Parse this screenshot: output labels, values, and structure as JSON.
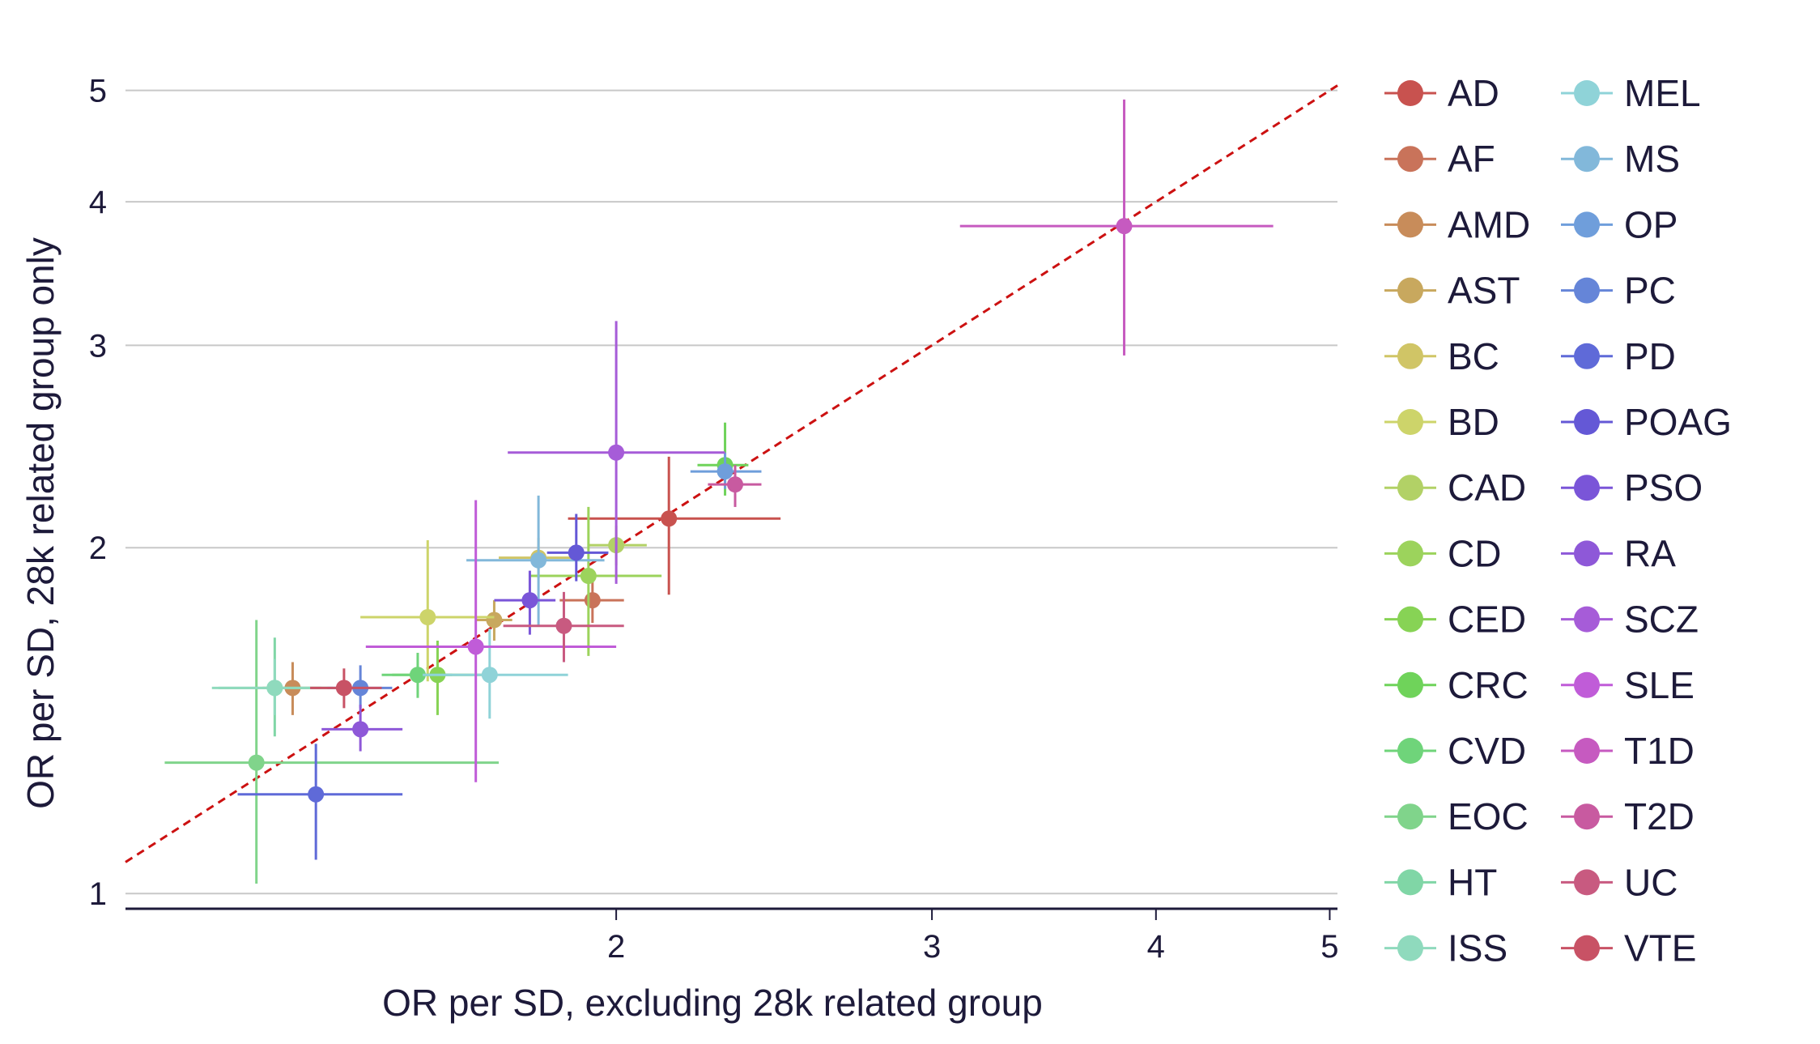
{
  "chart_data": {
    "type": "scatter",
    "xlabel": "OR per SD, excluding 28k related group",
    "ylabel": "OR per SD, 28k related group only",
    "x_scale": "log",
    "y_scale": "log",
    "xlim": [
      1.065,
      5.05
    ],
    "ylim": [
      0.97,
      5.35
    ],
    "x_ticks": [
      2,
      3,
      4,
      5
    ],
    "y_ticks": [
      1,
      2,
      3,
      4,
      5
    ],
    "grid": "horizontal",
    "reference_line": "y = x",
    "reference_line_color": "#cc1111",
    "legend_position": "right",
    "series": [
      {
        "name": "AD",
        "color": "#c8524f",
        "x": 2.14,
        "x_lo": 1.88,
        "x_hi": 2.47,
        "y": 2.12,
        "y_lo": 1.82,
        "y_hi": 2.4
      },
      {
        "name": "AF",
        "color": "#c9735a",
        "x": 1.94,
        "x_lo": 1.86,
        "x_hi": 2.02,
        "y": 1.8,
        "y_lo": 1.72,
        "y_hi": 1.88
      },
      {
        "name": "AMD",
        "color": "#c88c5a",
        "x": 1.32,
        "x_lo": 1.27,
        "x_hi": 1.37,
        "y": 1.51,
        "y_lo": 1.43,
        "y_hi": 1.59
      },
      {
        "name": "AST",
        "color": "#c8a85e",
        "x": 1.71,
        "x_lo": 1.67,
        "x_hi": 1.75,
        "y": 1.73,
        "y_lo": 1.66,
        "y_hi": 1.8
      },
      {
        "name": "BC",
        "color": "#d0c566",
        "x": 1.81,
        "x_lo": 1.72,
        "x_hi": 1.9,
        "y": 1.96,
        "y_lo": 1.88,
        "y_hi": 2.04
      },
      {
        "name": "BD",
        "color": "#cdd46a",
        "x": 1.57,
        "x_lo": 1.44,
        "x_hi": 1.71,
        "y": 1.74,
        "y_lo": 1.53,
        "y_hi": 2.03
      },
      {
        "name": "CAD",
        "color": "#b2d166",
        "x": 2.0,
        "x_lo": 1.93,
        "x_hi": 2.08,
        "y": 2.01,
        "y_lo": 1.93,
        "y_hi": 2.09
      },
      {
        "name": "CD",
        "color": "#9cd35c",
        "x": 1.93,
        "x_lo": 1.79,
        "x_hi": 2.12,
        "y": 1.89,
        "y_lo": 1.61,
        "y_hi": 2.17
      },
      {
        "name": "CED",
        "color": "#87d355",
        "x": 1.59,
        "x_lo": 1.5,
        "x_hi": 1.7,
        "y": 1.55,
        "y_lo": 1.43,
        "y_hi": 1.66
      },
      {
        "name": "CRC",
        "color": "#6fd35a",
        "x": 2.3,
        "x_lo": 2.22,
        "x_hi": 2.37,
        "y": 2.36,
        "y_lo": 2.22,
        "y_hi": 2.57
      },
      {
        "name": "CVD",
        "color": "#6fd47a",
        "x": 1.55,
        "x_lo": 1.48,
        "x_hi": 1.62,
        "y": 1.55,
        "y_lo": 1.48,
        "y_hi": 1.62
      },
      {
        "name": "EOC",
        "color": "#80d48b",
        "x": 1.26,
        "x_lo": 1.12,
        "x_hi": 1.72,
        "y": 1.3,
        "y_lo": 1.02,
        "y_hi": 1.73
      },
      {
        "name": "HT",
        "color": "#80d6a6",
        "x": 1.29,
        "x_lo": 1.2,
        "x_hi": 1.38,
        "y": 1.51,
        "y_lo": 1.37,
        "y_hi": 1.67
      },
      {
        "name": "ISS",
        "color": "#8fdabd",
        "x": 1.29,
        "x_lo": 1.19,
        "x_hi": 1.39,
        "y": 1.51,
        "y_lo": 1.43,
        "y_hi": 1.6
      },
      {
        "name": "MEL",
        "color": "#8fd3d8",
        "x": 1.7,
        "x_lo": 1.56,
        "x_hi": 1.88,
        "y": 1.55,
        "y_lo": 1.42,
        "y_hi": 1.7
      },
      {
        "name": "MS",
        "color": "#82b8da",
        "x": 1.81,
        "x_lo": 1.65,
        "x_hi": 1.97,
        "y": 1.95,
        "y_lo": 1.71,
        "y_hi": 2.22
      },
      {
        "name": "OP",
        "color": "#6f9edb",
        "x": 2.3,
        "x_lo": 2.2,
        "x_hi": 2.41,
        "y": 2.33,
        "y_lo": 2.25,
        "y_hi": 2.42
      },
      {
        "name": "PC",
        "color": "#6585d8",
        "x": 1.44,
        "x_lo": 1.38,
        "x_hi": 1.5,
        "y": 1.51,
        "y_lo": 1.45,
        "y_hi": 1.58
      },
      {
        "name": "PD",
        "color": "#5f6ad8",
        "x": 1.36,
        "x_lo": 1.23,
        "x_hi": 1.52,
        "y": 1.22,
        "y_lo": 1.07,
        "y_hi": 1.35
      },
      {
        "name": "POAG",
        "color": "#6458d6",
        "x": 1.9,
        "x_lo": 1.83,
        "x_hi": 1.98,
        "y": 1.98,
        "y_lo": 1.87,
        "y_hi": 2.14
      },
      {
        "name": "PSO",
        "color": "#7a55d8",
        "x": 1.79,
        "x_lo": 1.71,
        "x_hi": 1.85,
        "y": 1.8,
        "y_lo": 1.68,
        "y_hi": 1.91
      },
      {
        "name": "RA",
        "color": "#8e58d8",
        "x": 1.44,
        "x_lo": 1.37,
        "x_hi": 1.52,
        "y": 1.39,
        "y_lo": 1.33,
        "y_hi": 1.46
      },
      {
        "name": "SCZ",
        "color": "#a65cd8",
        "x": 2.0,
        "x_lo": 1.74,
        "x_hi": 2.3,
        "y": 2.42,
        "y_lo": 1.86,
        "y_hi": 3.15
      },
      {
        "name": "SLE",
        "color": "#c05cd8",
        "x": 1.67,
        "x_lo": 1.45,
        "x_hi": 2.0,
        "y": 1.64,
        "y_lo": 1.25,
        "y_hi": 2.2
      },
      {
        "name": "T1D",
        "color": "#c65ac0",
        "x": 3.84,
        "x_lo": 3.11,
        "x_hi": 4.65,
        "y": 3.81,
        "y_lo": 2.94,
        "y_hi": 4.91
      },
      {
        "name": "T2D",
        "color": "#c85aa0",
        "x": 2.33,
        "x_lo": 2.25,
        "x_hi": 2.41,
        "y": 2.27,
        "y_lo": 2.17,
        "y_hi": 2.36
      },
      {
        "name": "UC",
        "color": "#c85a80",
        "x": 1.87,
        "x_lo": 1.73,
        "x_hi": 2.02,
        "y": 1.71,
        "y_lo": 1.59,
        "y_hi": 1.83
      },
      {
        "name": "VTE",
        "color": "#c85265",
        "x": 1.41,
        "x_lo": 1.35,
        "x_hi": 1.48,
        "y": 1.51,
        "y_lo": 1.45,
        "y_hi": 1.57
      }
    ]
  }
}
